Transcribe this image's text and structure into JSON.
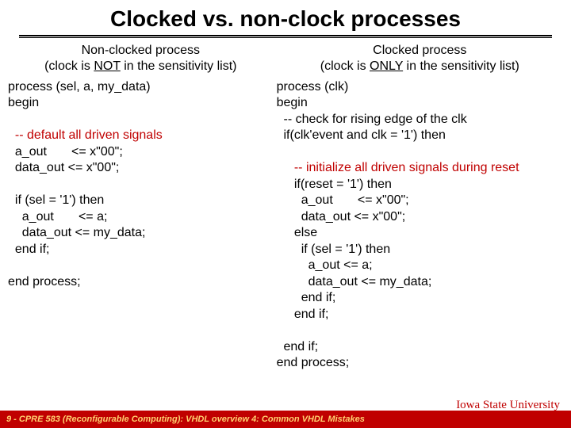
{
  "title": "Clocked vs. non-clock processes",
  "left": {
    "heading_line1": "Non-clocked process",
    "heading_line2_pre": "(clock is ",
    "heading_line2_u": "NOT",
    "heading_line2_post": " in the sensitivity list)",
    "code": "process (sel, a, my_data)\nbegin\n",
    "comment": "  -- default all driven signals",
    "code2": "\n  a_out       <= x\"00\";\n  data_out <= x\"00\";\n\n  if (sel = '1') then\n    a_out       <= a;\n    data_out <= my_data;\n  end if;\n\nend process;"
  },
  "right": {
    "heading_line1": "Clocked process",
    "heading_line2_pre": "(clock is ",
    "heading_line2_u": "ONLY",
    "heading_line2_post": " in the sensitivity list)",
    "code": "process (clk)\nbegin\n  -- check for rising edge of the clk\n  if(clk'event and clk = '1') then\n",
    "comment": "     -- initialize all driven signals during reset",
    "code2": "\n     if(reset = '1') then\n       a_out       <= x\"00\";\n       data_out <= x\"00\";\n     else\n       if (sel = '1') then\n         a_out <= a;\n         data_out <= my_data;\n       end if;\n     end if;\n\n  end if;\nend process;"
  },
  "footer": "9 - CPRE 583 (Reconfigurable Computing):  VHDL overview 4: Common VHDL Mistakes",
  "isu": "Iowa State University",
  "colors": {
    "comment_red": "#c00000",
    "footer_bg": "#c00000",
    "footer_text": "#ffd070",
    "isu_color": "#c00000"
  }
}
